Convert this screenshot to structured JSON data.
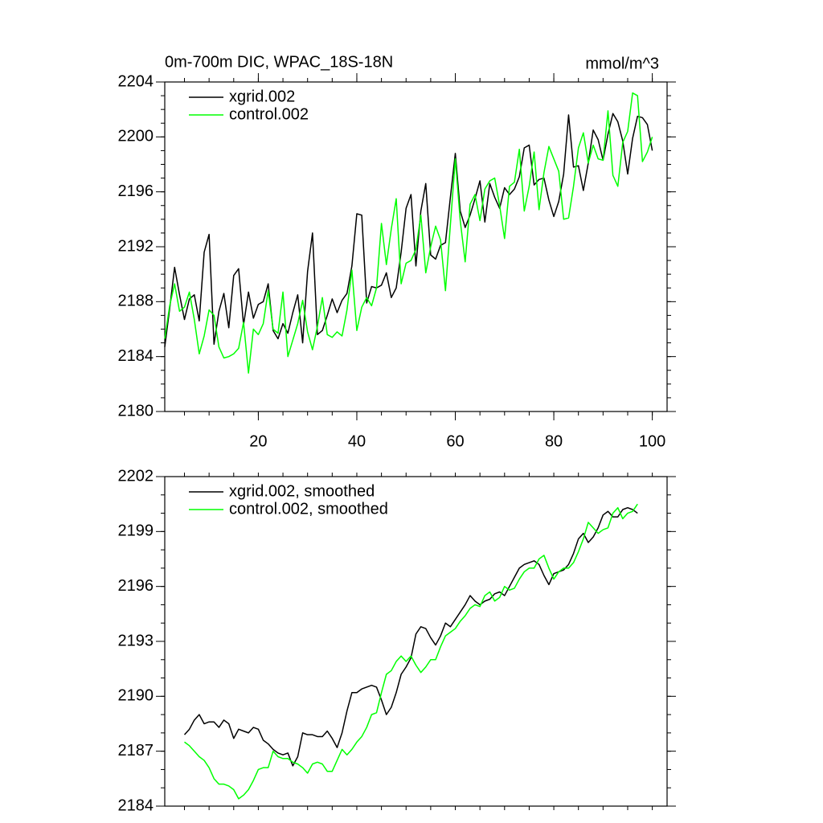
{
  "chart_data": [
    {
      "type": "line",
      "title": "0m-700m DIC, WPAC_18S-18N",
      "units_label": "mmol/m^3",
      "x": [
        1,
        2,
        3,
        4,
        5,
        6,
        7,
        8,
        9,
        10,
        11,
        12,
        13,
        14,
        15,
        16,
        17,
        18,
        19,
        20,
        21,
        22,
        23,
        24,
        25,
        26,
        27,
        28,
        29,
        30,
        31,
        32,
        33,
        34,
        35,
        36,
        37,
        38,
        39,
        40,
        41,
        42,
        43,
        44,
        45,
        46,
        47,
        48,
        49,
        50,
        51,
        52,
        53,
        54,
        55,
        56,
        57,
        58,
        59,
        60,
        61,
        62,
        63,
        64,
        65,
        66,
        67,
        68,
        69,
        70,
        71,
        72,
        73,
        74,
        75,
        76,
        77,
        78,
        79,
        80,
        81,
        82,
        83,
        84,
        85,
        86,
        87,
        88,
        89,
        90,
        91,
        92,
        93,
        94,
        95,
        96,
        97,
        98,
        99,
        100
      ],
      "series": [
        {
          "name": "xgrid.002",
          "color": "#000000",
          "values": [
            2184.7,
            2187.5,
            2190.5,
            2188.5,
            2186.7,
            2188.2,
            2188.5,
            2186.6,
            2191.6,
            2192.9,
            2184.9,
            2187.3,
            2188.6,
            2186.1,
            2189.9,
            2190.4,
            2186.3,
            2188.7,
            2186.8,
            2187.8,
            2188,
            2189.3,
            2185.9,
            2185.3,
            2186.4,
            2185.7,
            2187.2,
            2188.5,
            2185,
            2190.2,
            2193,
            2185.6,
            2185.9,
            2187,
            2188.2,
            2187.2,
            2188.1,
            2188.6,
            2190.6,
            2194.4,
            2194.3,
            2187.9,
            2189.1,
            2189,
            2189.2,
            2190.1,
            2188.3,
            2189,
            2191.6,
            2194.8,
            2195.8,
            2190.6,
            2194.6,
            2196.6,
            2191.4,
            2191.1,
            2192.1,
            2192.3,
            2195.6,
            2198.8,
            2194.6,
            2193.4,
            2194.3,
            2195.5,
            2196.8,
            2193.8,
            2196.6,
            2195.6,
            2194.8,
            2196.3,
            2195.8,
            2196.2,
            2197.1,
            2199.2,
            2199.4,
            2196.5,
            2196.9,
            2197,
            2195.4,
            2194.2,
            2195.3,
            2197.3,
            2201.6,
            2197.8,
            2197.9,
            2196.1,
            2198.1,
            2200.5,
            2199.8,
            2198.3,
            2200.2,
            2201.7,
            2201.1,
            2199.7,
            2197.3,
            2199.9,
            2201.5,
            2201.4,
            2200.9,
            2199
          ]
        },
        {
          "name": "control.002",
          "color": "#00ff00",
          "values": [
            2185.3,
            2187.7,
            2189.3,
            2187.3,
            2187.6,
            2188.7,
            2186.7,
            2184.2,
            2185.5,
            2187.4,
            2187,
            2184.7,
            2183.9,
            2184,
            2184.2,
            2184.6,
            2186.5,
            2182.8,
            2186,
            2185.6,
            2186.4,
            2188.8,
            2186,
            2185.7,
            2188.7,
            2184,
            2185.2,
            2186.4,
            2188.1,
            2185.8,
            2184.5,
            2186.2,
            2188.3,
            2185.6,
            2185.4,
            2185.8,
            2185.5,
            2187.4,
            2190.3,
            2185.9,
            2187.6,
            2188.3,
            2187.7,
            2189,
            2193.7,
            2190.7,
            2193.3,
            2195.5,
            2189.3,
            2190.8,
            2191,
            2191.8,
            2194.3,
            2190.1,
            2192,
            2193.5,
            2192.5,
            2188.8,
            2193.6,
            2198.4,
            2193.9,
            2190.9,
            2195.1,
            2195.8,
            2193.9,
            2196.2,
            2196.8,
            2197,
            2195,
            2192.6,
            2196.4,
            2196.7,
            2199.1,
            2194.6,
            2196.4,
            2198.9,
            2194.7,
            2197.4,
            2199.3,
            2198.4,
            2197.5,
            2194,
            2194.1,
            2196.4,
            2199.2,
            2200.3,
            2198.1,
            2199.4,
            2198.4,
            2198.3,
            2201.9,
            2197.2,
            2196.4,
            2199.6,
            2200.4,
            2203.2,
            2203,
            2198.2,
            2198.9,
            2200
          ]
        }
      ],
      "xlim": [
        1,
        103
      ],
      "xticks": [
        20,
        40,
        60,
        80,
        100
      ],
      "ylim": [
        2180,
        2204
      ],
      "yticks": [
        2180,
        2184,
        2188,
        2192,
        2196,
        2200,
        2204
      ],
      "legend": "upper left"
    },
    {
      "type": "line",
      "x": [
        5,
        6,
        7,
        8,
        9,
        10,
        11,
        12,
        13,
        14,
        15,
        16,
        17,
        18,
        19,
        20,
        21,
        22,
        23,
        24,
        25,
        26,
        27,
        28,
        29,
        30,
        31,
        32,
        33,
        34,
        35,
        36,
        37,
        38,
        39,
        40,
        41,
        42,
        43,
        44,
        45,
        46,
        47,
        48,
        49,
        50,
        51,
        52,
        53,
        54,
        55,
        56,
        57,
        58,
        59,
        60,
        61,
        62,
        63,
        64,
        65,
        66,
        67,
        68,
        69,
        70,
        71,
        72,
        73,
        74,
        75,
        76,
        77,
        78,
        79,
        80,
        81,
        82,
        83,
        84,
        85,
        86,
        87,
        88,
        89,
        90,
        91,
        92,
        93,
        94,
        95,
        96,
        97
      ],
      "series": [
        {
          "name": "xgrid.002, smoothed",
          "color": "#000000",
          "values": [
            2187.9,
            2188.2,
            2188.7,
            2189,
            2188.5,
            2188.6,
            2188.6,
            2188.3,
            2188.7,
            2188.5,
            2187.7,
            2188.2,
            2188.1,
            2188,
            2188.3,
            2188.2,
            2187.6,
            2187.4,
            2187.1,
            2186.9,
            2186.8,
            2186.9,
            2186.2,
            2186.7,
            2188,
            2187.9,
            2187.9,
            2187.8,
            2187.8,
            2188.1,
            2187.7,
            2187.2,
            2188,
            2189.2,
            2190.2,
            2190.2,
            2190.4,
            2190.5,
            2190.6,
            2190.5,
            2189.8,
            2189,
            2189.4,
            2190.2,
            2191.2,
            2191.6,
            2192.1,
            2193.4,
            2193.8,
            2193.7,
            2193.2,
            2192.8,
            2193.3,
            2194,
            2193.8,
            2194.2,
            2194.6,
            2195,
            2195.5,
            2195.2,
            2195,
            2195.2,
            2195.3,
            2195.6,
            2195.7,
            2195.5,
            2196,
            2196.5,
            2197,
            2197.2,
            2197.3,
            2197.4,
            2197.2,
            2196.6,
            2196.1,
            2196.7,
            2196.8,
            2196.9,
            2197.2,
            2197.8,
            2198.6,
            2198.9,
            2198.4,
            2198.7,
            2199.2,
            2199.9,
            2200.1,
            2199.8,
            2199.8,
            2200.2,
            2200.3,
            2200.2,
            2200
          ]
        },
        {
          "name": "control.002, smoothed",
          "color": "#00ff00",
          "values": [
            2187.5,
            2187.3,
            2187,
            2186.7,
            2186.5,
            2186.1,
            2185.5,
            2185.2,
            2185.2,
            2185.1,
            2184.9,
            2184.4,
            2184.6,
            2184.9,
            2185.4,
            2186,
            2186.1,
            2186.1,
            2187,
            2186.7,
            2186.6,
            2186.6,
            2186.4,
            2186.3,
            2186.1,
            2185.8,
            2186.3,
            2186.4,
            2186.3,
            2185.9,
            2185.9,
            2186.5,
            2187.1,
            2186.8,
            2187.1,
            2187.5,
            2187.8,
            2188.3,
            2189,
            2189.1,
            2190.2,
            2191.2,
            2191.4,
            2191.9,
            2192.2,
            2191.9,
            2192.2,
            2191.7,
            2191.3,
            2191.6,
            2192,
            2192,
            2192.7,
            2193.3,
            2193.5,
            2193.7,
            2194.1,
            2194.4,
            2194.8,
            2195,
            2194.9,
            2195.5,
            2195.7,
            2195.2,
            2195.4,
            2196,
            2195.8,
            2195.9,
            2196.4,
            2196.8,
            2197,
            2197,
            2197.5,
            2197.7,
            2197,
            2196.4,
            2196.8,
            2197,
            2197,
            2197.3,
            2197.9,
            2198.6,
            2199.5,
            2199.2,
            2198.9,
            2199.1,
            2199.2,
            2200,
            2200.3,
            2199.7,
            2200,
            2200.1,
            2200.5
          ]
        }
      ],
      "xlim": [
        1,
        103
      ],
      "ylim": [
        2184,
        2202
      ],
      "yticks": [
        2184,
        2187,
        2190,
        2193,
        2196,
        2199,
        2202
      ],
      "legend": "upper left"
    }
  ]
}
